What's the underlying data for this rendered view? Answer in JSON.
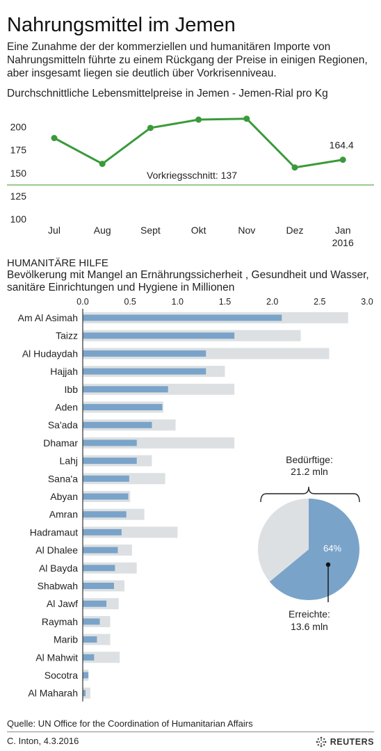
{
  "title": "Nahrungsmittel im Jemen",
  "intro": "Eine Zunahme der der kommerziellen und humanitären Importe von Nahrungsmitteln führte zu einem Rückgang der Preise in einigen Regionen, aber insgesamt liegen sie deutlich über  Vorkrisenniveau.",
  "line_subtitle": "Durchschnittliche Lebensmittelpreise in Jemen - Jemen-Rial pro Kg",
  "aid_heading": "HUMANITÄRE HILFE",
  "aid_subtitle": "Bevölkerung mit Mangel an Ernährungssicherheit , Gesundheit und Wasser, sanitäre Einrichtungen und Hygiene in Millionen",
  "source": "Quelle: UN Office for the Coordination of Humanitarian Affairs",
  "credit": "C. Inton, 4.3.2016",
  "brand": "REUTERS",
  "colors": {
    "line": "#3a9a3a",
    "prewar": "#9cca8c",
    "reached": "#7aa3c9",
    "needy": "#dde0e2"
  },
  "chart_data": [
    {
      "type": "line",
      "title": "Durchschnittliche Lebensmittelpreise in Jemen - Jemen-Rial pro Kg",
      "categories": [
        "Jul",
        "Aug",
        "Sept",
        "Okt",
        "Nov",
        "Dez",
        "Jan"
      ],
      "category_sublabels": [
        "",
        "",
        "",
        "",
        "",
        "",
        "2016"
      ],
      "values": [
        188,
        160,
        199,
        208,
        209,
        156,
        164.4
      ],
      "end_label": "164.4",
      "ylim": [
        100,
        215
      ],
      "yticks": [
        100,
        125,
        150,
        175,
        200
      ],
      "reference": {
        "value": 137,
        "label": "Vorkriegsschnitt: 137"
      },
      "grid": false
    },
    {
      "type": "bar",
      "orientation": "horizontal",
      "title": "HUMANITÄRE HILFE",
      "xlim": [
        0,
        3.0
      ],
      "xticks": [
        "0.0",
        "0.5",
        "1.0",
        "1.5",
        "2.0",
        "2.5",
        "3.0"
      ],
      "categories": [
        "Am Al Asimah",
        "Taizz",
        "Al Hudaydah",
        "Hajjah",
        "Ibb",
        "Aden",
        "Sa'ada",
        "Dhamar",
        "Lahj",
        "Sana'a",
        "Abyan",
        "Amran",
        "Hadramaut",
        "Al Dhalee",
        "Al Bayda",
        "Shabwah",
        "Al Jawf",
        "Raymah",
        "Marib",
        "Al Mahwit",
        "Socotra",
        "Al Maharah"
      ],
      "series": [
        {
          "values": [
            2.8,
            2.3,
            2.6,
            1.5,
            1.6,
            0.85,
            0.98,
            1.6,
            0.73,
            0.87,
            0.5,
            0.65,
            1.0,
            0.52,
            0.57,
            0.44,
            0.38,
            0.29,
            0.29,
            0.39,
            0.06,
            0.08
          ]
        },
        {
          "values": [
            2.1,
            1.6,
            1.3,
            1.3,
            0.9,
            0.84,
            0.73,
            0.57,
            0.57,
            0.49,
            0.48,
            0.46,
            0.41,
            0.37,
            0.34,
            0.33,
            0.25,
            0.18,
            0.15,
            0.12,
            0.06,
            0.03
          ]
        }
      ]
    },
    {
      "type": "pie",
      "needy_label": "Bedürftige:",
      "needy_value": "21.2 mln",
      "reached_label": "Erreichte:",
      "reached_value": "13.6 mln",
      "reached_pct_label": "64%",
      "slices": [
        {
          "value": 64
        },
        {
          "value": 36
        }
      ]
    }
  ]
}
